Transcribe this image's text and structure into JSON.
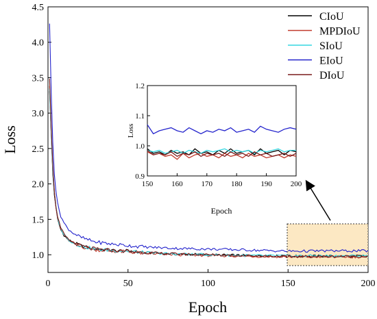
{
  "chart_data": [
    {
      "type": "line",
      "xlabel": "Epoch",
      "ylabel": "Loss",
      "xlim": [
        0,
        200
      ],
      "ylim": [
        0.75,
        4.5
      ],
      "xticks": [
        "0",
        "50",
        "100",
        "150",
        "200"
      ],
      "yticks": [
        "1.0",
        "1.5",
        "2.0",
        "2.5",
        "3.0",
        "3.5",
        "4.0",
        "4.5"
      ],
      "grid": false,
      "legend_position": "top-right",
      "series": [
        {
          "name": "CIoU",
          "color": "#000000",
          "x": [
            1,
            2,
            3,
            4,
            5,
            6,
            8,
            10,
            12,
            15,
            20,
            25,
            30,
            40,
            50,
            60,
            80,
            100,
            120,
            150,
            175,
            200
          ],
          "values": [
            3.3,
            2.7,
            2.15,
            1.85,
            1.65,
            1.5,
            1.35,
            1.28,
            1.22,
            1.18,
            1.13,
            1.1,
            1.08,
            1.06,
            1.05,
            1.03,
            1.01,
            1.0,
            0.99,
            0.98,
            0.98,
            0.98
          ]
        },
        {
          "name": "MPDIoU",
          "color": "#c0392b",
          "x": [
            1,
            2,
            3,
            4,
            5,
            6,
            8,
            10,
            12,
            15,
            20,
            25,
            30,
            40,
            50,
            60,
            80,
            100,
            120,
            150,
            175,
            200
          ],
          "values": [
            3.4,
            2.75,
            2.2,
            1.88,
            1.66,
            1.52,
            1.36,
            1.28,
            1.22,
            1.17,
            1.12,
            1.09,
            1.07,
            1.05,
            1.04,
            1.02,
            1.0,
            0.99,
            0.98,
            0.97,
            0.97,
            0.97
          ]
        },
        {
          "name": "SIoU",
          "color": "#33d6e0",
          "x": [
            1,
            2,
            3,
            4,
            5,
            6,
            8,
            10,
            12,
            15,
            20,
            25,
            30,
            40,
            50,
            60,
            80,
            100,
            120,
            150,
            175,
            200
          ],
          "values": [
            3.35,
            2.72,
            2.18,
            1.87,
            1.67,
            1.53,
            1.37,
            1.29,
            1.23,
            1.18,
            1.13,
            1.1,
            1.08,
            1.06,
            1.05,
            1.03,
            1.01,
            1.0,
            0.99,
            0.985,
            0.985,
            0.985
          ]
        },
        {
          "name": "EIoU",
          "color": "#2222cc",
          "x": [
            1,
            2,
            3,
            4,
            5,
            6,
            8,
            10,
            12,
            15,
            20,
            25,
            30,
            40,
            50,
            60,
            80,
            100,
            120,
            150,
            175,
            200
          ],
          "values": [
            4.25,
            3.3,
            2.6,
            2.15,
            1.9,
            1.72,
            1.55,
            1.45,
            1.38,
            1.32,
            1.25,
            1.21,
            1.18,
            1.15,
            1.13,
            1.11,
            1.09,
            1.08,
            1.07,
            1.05,
            1.055,
            1.055
          ]
        },
        {
          "name": "DIoU",
          "color": "#7a1a1a",
          "x": [
            1,
            2,
            3,
            4,
            5,
            6,
            8,
            10,
            12,
            15,
            20,
            25,
            30,
            40,
            50,
            60,
            80,
            100,
            120,
            150,
            175,
            200
          ],
          "values": [
            3.5,
            2.8,
            2.25,
            1.9,
            1.68,
            1.53,
            1.37,
            1.29,
            1.23,
            1.18,
            1.13,
            1.1,
            1.08,
            1.06,
            1.05,
            1.03,
            1.01,
            1.0,
            0.99,
            0.975,
            0.975,
            0.975
          ]
        }
      ]
    },
    {
      "type": "line",
      "xlabel": "Epoch",
      "ylabel": "Loss",
      "xlim": [
        150,
        200
      ],
      "ylim": [
        0.9,
        1.2
      ],
      "xticks": [
        "150",
        "160",
        "170",
        "180",
        "190",
        "200"
      ],
      "yticks": [
        "0.9",
        "1.0",
        "1.1",
        "1.2"
      ],
      "grid": false,
      "x": [
        150,
        152,
        154,
        156,
        158,
        160,
        162,
        164,
        166,
        168,
        170,
        172,
        174,
        176,
        178,
        180,
        182,
        184,
        186,
        188,
        190,
        192,
        194,
        196,
        198,
        200
      ],
      "series": [
        {
          "name": "CIoU",
          "color": "#000000",
          "values": [
            0.99,
            0.975,
            0.98,
            0.97,
            0.985,
            0.975,
            0.98,
            0.97,
            0.99,
            0.975,
            0.98,
            0.97,
            0.985,
            0.975,
            0.99,
            0.975,
            0.98,
            0.985,
            0.97,
            0.99,
            0.975,
            0.98,
            0.985,
            0.97,
            0.985,
            0.98
          ]
        },
        {
          "name": "MPDIoU",
          "color": "#c0392b",
          "values": [
            0.98,
            0.97,
            0.975,
            0.965,
            0.97,
            0.955,
            0.975,
            0.96,
            0.97,
            0.975,
            0.965,
            0.97,
            0.96,
            0.975,
            0.965,
            0.97,
            0.96,
            0.975,
            0.965,
            0.97,
            0.96,
            0.965,
            0.97,
            0.96,
            0.97,
            0.965
          ]
        },
        {
          "name": "SIoU",
          "color": "#33d6e0",
          "values": [
            0.985,
            0.98,
            0.985,
            0.975,
            0.98,
            0.985,
            0.975,
            0.985,
            0.98,
            0.975,
            0.985,
            0.98,
            0.985,
            0.99,
            0.98,
            0.985,
            0.98,
            0.985,
            0.975,
            0.985,
            0.98,
            0.985,
            0.99,
            0.98,
            0.985,
            0.985
          ]
        },
        {
          "name": "EIoU",
          "color": "#2222cc",
          "values": [
            1.07,
            1.04,
            1.05,
            1.055,
            1.06,
            1.05,
            1.045,
            1.06,
            1.05,
            1.04,
            1.05,
            1.045,
            1.055,
            1.05,
            1.06,
            1.045,
            1.05,
            1.055,
            1.045,
            1.065,
            1.055,
            1.05,
            1.045,
            1.055,
            1.06,
            1.055
          ]
        },
        {
          "name": "DIoU",
          "color": "#7a1a1a",
          "values": [
            0.985,
            0.97,
            0.975,
            0.97,
            0.98,
            0.965,
            0.975,
            0.97,
            0.98,
            0.965,
            0.975,
            0.97,
            0.975,
            0.965,
            0.98,
            0.97,
            0.975,
            0.965,
            0.98,
            0.97,
            0.975,
            0.965,
            0.97,
            0.975,
            0.965,
            0.975
          ]
        }
      ]
    }
  ]
}
